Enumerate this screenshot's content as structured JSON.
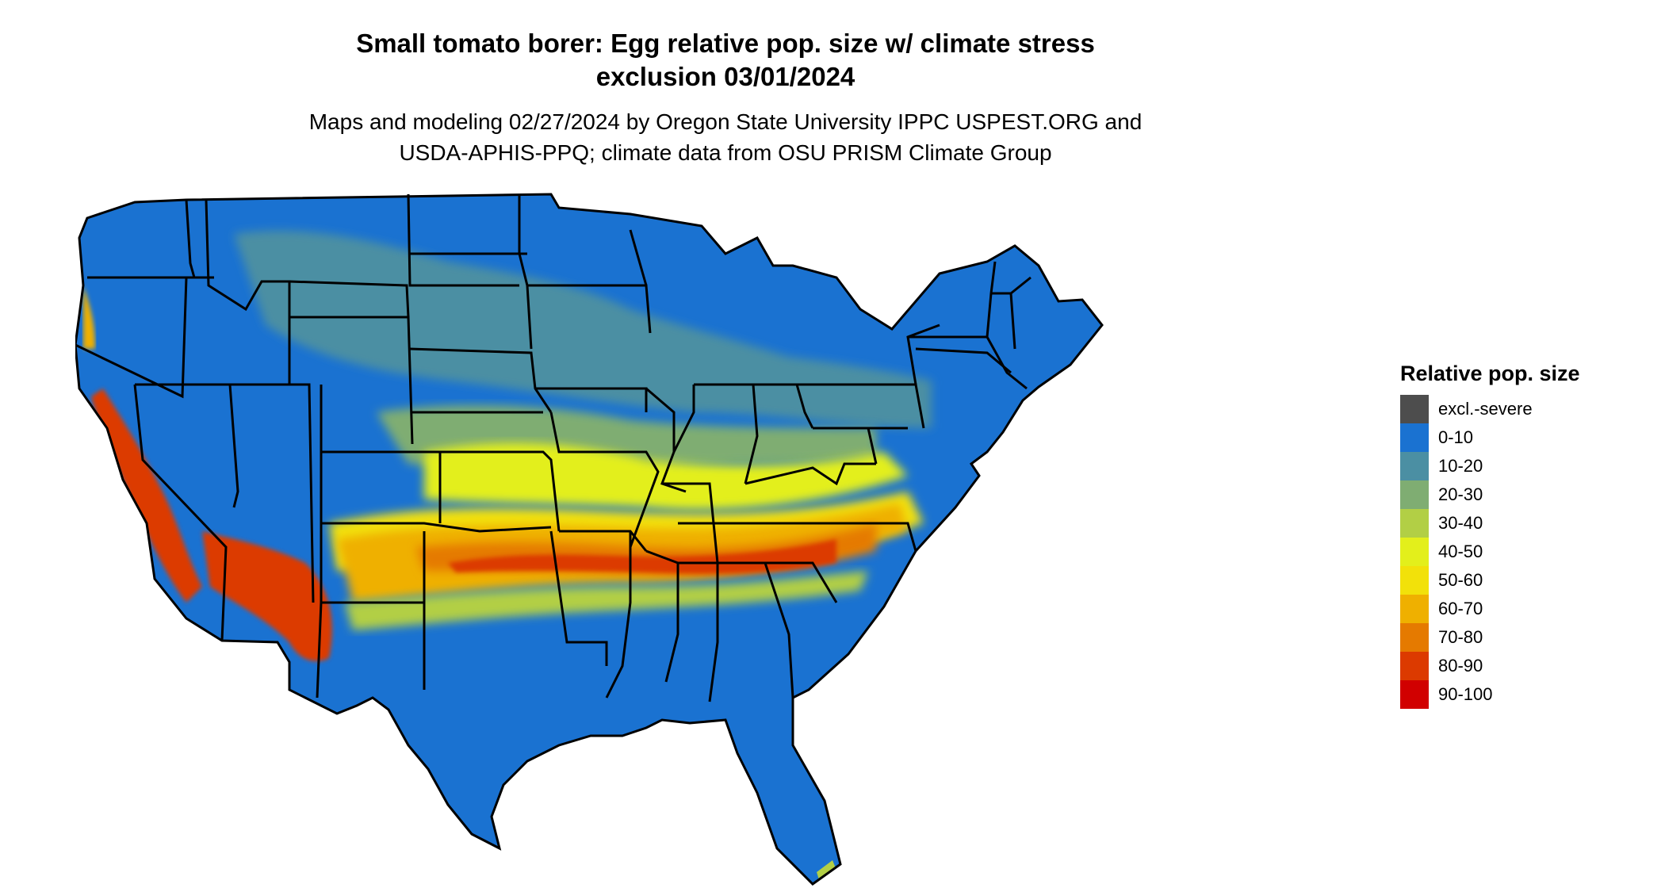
{
  "title": {
    "line1": "Small tomato borer: Egg relative pop. size w/ climate stress",
    "line2": "exclusion 03/01/2024"
  },
  "subtitle": {
    "line1": "Maps and modeling 02/27/2024 by Oregon State University IPPC USPEST.ORG and",
    "line2": "USDA-APHIS-PPQ; climate data from OSU PRISM Climate Group"
  },
  "legend": {
    "title": "Relative pop. size",
    "items": [
      {
        "label": "excl.-severe",
        "color": "#4d4d4d"
      },
      {
        "label": "0-10",
        "color": "#1a72d1"
      },
      {
        "label": "10-20",
        "color": "#4b8fa3"
      },
      {
        "label": "20-30",
        "color": "#7fad72"
      },
      {
        "label": "30-40",
        "color": "#b2cf45"
      },
      {
        "label": "40-50",
        "color": "#e3ef1b"
      },
      {
        "label": "50-60",
        "color": "#f2e10a"
      },
      {
        "label": "60-70",
        "color": "#efb000"
      },
      {
        "label": "70-80",
        "color": "#e57a00"
      },
      {
        "label": "80-90",
        "color": "#dc3a00"
      },
      {
        "label": "90-100",
        "color": "#d10000"
      }
    ]
  },
  "map": {
    "region": "contiguous-united-states",
    "basemap_color": "#1a72d1",
    "boundary_color": "#000000"
  }
}
